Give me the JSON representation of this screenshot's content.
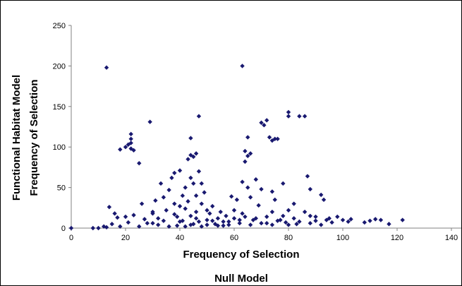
{
  "chart_data": {
    "type": "scatter",
    "title": "",
    "xlabel": "Frequency of Selection",
    "xlabel_secondary": "Null Model",
    "ylabel": "Frequency of Selection",
    "ylabel_secondary": "Functional Habitat Model",
    "xlim": [
      0,
      140
    ],
    "ylim": [
      0,
      250
    ],
    "x_ticks": [
      "0",
      "20",
      "40",
      "60",
      "80",
      "100",
      "120",
      "140"
    ],
    "y_ticks": [
      "0",
      "50",
      "100",
      "150",
      "200",
      "250"
    ],
    "grid": false,
    "legend": "none",
    "marker": "diamond",
    "marker_color": "#191970",
    "series": [
      {
        "points": [
          [
            0,
            0
          ],
          [
            8,
            0
          ],
          [
            10,
            0
          ],
          [
            12,
            2
          ],
          [
            13,
            1
          ],
          [
            13,
            198
          ],
          [
            14,
            26
          ],
          [
            15,
            5
          ],
          [
            16,
            18
          ],
          [
            17,
            13
          ],
          [
            18,
            2
          ],
          [
            18,
            97
          ],
          [
            20,
            100
          ],
          [
            20,
            14
          ],
          [
            21,
            103
          ],
          [
            21,
            7
          ],
          [
            22,
            98
          ],
          [
            22,
            116
          ],
          [
            22,
            110
          ],
          [
            22,
            105
          ],
          [
            23,
            96
          ],
          [
            23,
            16
          ],
          [
            25,
            80
          ],
          [
            25,
            2
          ],
          [
            26,
            30
          ],
          [
            27,
            11
          ],
          [
            28,
            6
          ],
          [
            29,
            131
          ],
          [
            30,
            18
          ],
          [
            30,
            6
          ],
          [
            31,
            34
          ],
          [
            32,
            12
          ],
          [
            33,
            55
          ],
          [
            34,
            38
          ],
          [
            35,
            22
          ],
          [
            36,
            47
          ],
          [
            37,
            62
          ],
          [
            38,
            68
          ],
          [
            38,
            30
          ],
          [
            39,
            14
          ],
          [
            39,
            3
          ],
          [
            40,
            71
          ],
          [
            40,
            27
          ],
          [
            41,
            40
          ],
          [
            41,
            9
          ],
          [
            42,
            50
          ],
          [
            42,
            2
          ],
          [
            43,
            85
          ],
          [
            43,
            33
          ],
          [
            44,
            111
          ],
          [
            44,
            90
          ],
          [
            44,
            62
          ],
          [
            44,
            15
          ],
          [
            45,
            88
          ],
          [
            45,
            55
          ],
          [
            45,
            5
          ],
          [
            46,
            92
          ],
          [
            46,
            40
          ],
          [
            46,
            20
          ],
          [
            47,
            138
          ],
          [
            47,
            70
          ],
          [
            47,
            8
          ],
          [
            48,
            55
          ],
          [
            48,
            30
          ],
          [
            49,
            44
          ],
          [
            50,
            22
          ],
          [
            50,
            10
          ],
          [
            51,
            18
          ],
          [
            52,
            27
          ],
          [
            53,
            5
          ],
          [
            54,
            12
          ],
          [
            55,
            20
          ],
          [
            56,
            3
          ],
          [
            57,
            15
          ],
          [
            58,
            8
          ],
          [
            59,
            39
          ],
          [
            60,
            22
          ],
          [
            61,
            35
          ],
          [
            62,
            10
          ],
          [
            63,
            200
          ],
          [
            63,
            57
          ],
          [
            63,
            18
          ],
          [
            64,
            82
          ],
          [
            64,
            95
          ],
          [
            65,
            112
          ],
          [
            65,
            89
          ],
          [
            65,
            50
          ],
          [
            66,
            38
          ],
          [
            66,
            92
          ],
          [
            67,
            10
          ],
          [
            68,
            60
          ],
          [
            69,
            28
          ],
          [
            70,
            130
          ],
          [
            70,
            48
          ],
          [
            71,
            127
          ],
          [
            72,
            133
          ],
          [
            72,
            6
          ],
          [
            73,
            112
          ],
          [
            74,
            108
          ],
          [
            74,
            45
          ],
          [
            74,
            20
          ],
          [
            75,
            110
          ],
          [
            75,
            35
          ],
          [
            76,
            110
          ],
          [
            77,
            10
          ],
          [
            78,
            55
          ],
          [
            79,
            7
          ],
          [
            80,
            143
          ],
          [
            80,
            138
          ],
          [
            80,
            22
          ],
          [
            82,
            30
          ],
          [
            83,
            5
          ],
          [
            84,
            138
          ],
          [
            86,
            138
          ],
          [
            87,
            64
          ],
          [
            88,
            48
          ],
          [
            88,
            15
          ],
          [
            90,
            9
          ],
          [
            92,
            41
          ],
          [
            93,
            35
          ],
          [
            95,
            12
          ],
          [
            96,
            7
          ],
          [
            98,
            14
          ],
          [
            100,
            10
          ],
          [
            102,
            8
          ],
          [
            103,
            11
          ],
          [
            108,
            7
          ],
          [
            110,
            9
          ],
          [
            112,
            11
          ],
          [
            114,
            10
          ],
          [
            117,
            5
          ],
          [
            122,
            10
          ],
          [
            30,
            20
          ],
          [
            32,
            4
          ],
          [
            34,
            9
          ],
          [
            36,
            2
          ],
          [
            38,
            17
          ],
          [
            40,
            8
          ],
          [
            42,
            24
          ],
          [
            44,
            4
          ],
          [
            46,
            12
          ],
          [
            48,
            2
          ],
          [
            50,
            4
          ],
          [
            52,
            9
          ],
          [
            54,
            3
          ],
          [
            56,
            8
          ],
          [
            58,
            4
          ],
          [
            60,
            12
          ],
          [
            62,
            6
          ],
          [
            64,
            14
          ],
          [
            66,
            4
          ],
          [
            68,
            12
          ],
          [
            70,
            6
          ],
          [
            72,
            14
          ],
          [
            74,
            4
          ],
          [
            76,
            9
          ],
          [
            78,
            15
          ],
          [
            80,
            4
          ],
          [
            82,
            12
          ],
          [
            84,
            8
          ],
          [
            86,
            20
          ],
          [
            88,
            6
          ],
          [
            90,
            14
          ],
          [
            92,
            4
          ],
          [
            94,
            10
          ]
        ]
      }
    ]
  }
}
